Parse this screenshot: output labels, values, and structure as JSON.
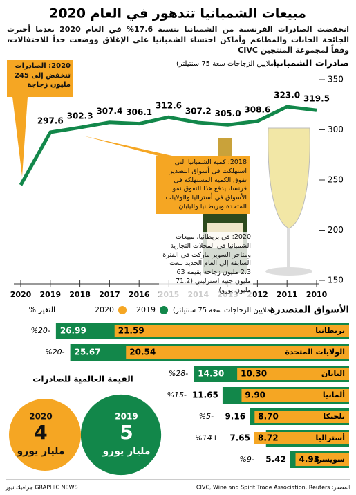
{
  "title": "مبيعات الشمبانيا تتدهور في العام 2020",
  "subtitle": "انخفضت الصادرات الفرنسية من الشمبانيا بنسبة 17.6% في العام 2020 بعدما أجبرت الجائحة الحانات والمطاعم وأماكن احتساء الشمبانيا على الإغلاق ووضعت حداً للاحتفالات، وفقاً لمجموعة المنتجين CIVC",
  "source": "المصدر: CIVC, Wine and Spirit Trade Association, Reuters",
  "credit": "جرافيك نيوز GRAPHIC NEWS",
  "chart_data": [
    {
      "type": "line",
      "title": "صادرات الشمبانيا",
      "subtitle": "(ملايين الزجاجات سعة 75 سنتيلتر)",
      "x": [
        2010,
        2011,
        2012,
        2013,
        2014,
        2015,
        2016,
        2017,
        2018,
        2019,
        2020
      ],
      "values": [
        319.5,
        323.0,
        308.6,
        305.0,
        307.2,
        312.6,
        306.1,
        307.4,
        302.3,
        297.6,
        245
      ],
      "value_labels": [
        "319.5",
        "323.0",
        "308.6",
        "305.0",
        "307.2",
        "312.6",
        "306.1",
        "307.4",
        "302.3",
        "297.6",
        null
      ],
      "color": "#12874a",
      "xlim": [
        2020,
        2010
      ],
      "xticks": [
        2010,
        2011,
        2012,
        2013,
        2014,
        2015,
        2016,
        2017,
        2018,
        2019,
        2020
      ],
      "ylim": [
        150,
        350
      ],
      "yticks": [
        150,
        200,
        250,
        300,
        350
      ],
      "grid": false,
      "annotations": [
        "2020: الصادرات تنخفض إلى 245 مليون زجاجة",
        "2018: كمية الشمبانيا التي استهلكت في أسواق التصدير تفوق الكمية المستهلكة في فرنسا، يدفع هذا التفوق نمو الأسواق في أستراليا والولايات المتحدة وبريطانيا واليابان",
        "2020: في بريطانيا، مبيعات الشمبانيا في المحلات التجارية ومتاجر السوبر ماركت في الفترة السابقة إلى العام الجديد بلغت 2.3 مليون زجاجة بقيمة 63 مليون جنيه استرليني (71.2 مليون يورو)"
      ]
    },
    {
      "type": "hbar",
      "title": "الأسواق المتصدرة",
      "subtitle": "(ملايين الزجاجات سعة 75 سنتيلتر)",
      "categories": [
        "بريطانيا",
        "الولايات المتحدة",
        "اليابان",
        "ألمانيا",
        "بلجيكا",
        "أستراليا",
        "سويسرا"
      ],
      "series": [
        {
          "name": "2019",
          "color": "#12874a",
          "values": [
            26.99,
            25.67,
            14.3,
            11.65,
            9.16,
            7.65,
            5.42
          ],
          "value_labels": [
            "26.99",
            "25.67",
            "14.30",
            "11.65",
            "9.16",
            "7.65",
            "5.42"
          ]
        },
        {
          "name": "2020",
          "color": "#f5a623",
          "values": [
            21.59,
            20.54,
            10.3,
            9.9,
            8.7,
            8.72,
            4.93
          ],
          "value_labels": [
            "21.59",
            "20.54",
            "10.30",
            "9.90",
            "8.70",
            "8.72",
            "4.93"
          ]
        }
      ],
      "change_title": "التغير %",
      "change_labels": [
        "%20-",
        "%20-",
        "%28-",
        "%15-",
        "%5-",
        "%14+",
        "%9-"
      ],
      "xlim": [
        0,
        28
      ]
    },
    {
      "type": "venn",
      "title": "القيمة العالمية للصادرات",
      "categories": [
        "2019",
        "2020"
      ],
      "values": [
        5,
        4
      ],
      "colors": [
        "#12874a",
        "#f5a623"
      ],
      "unit": "مليار يورو"
    }
  ]
}
